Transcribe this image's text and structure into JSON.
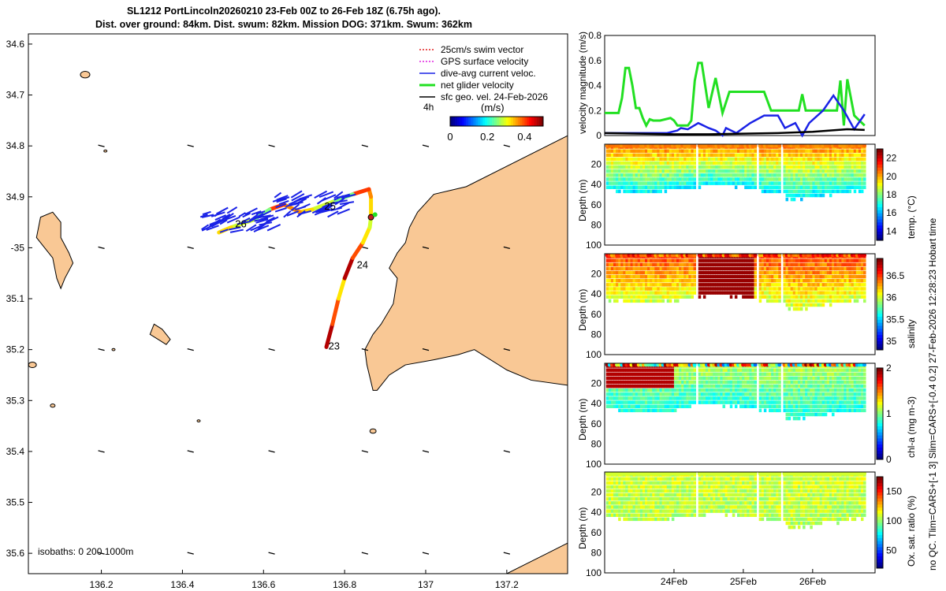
{
  "title": {
    "line1": "SL1212 PortLincoln20260210 23-Feb 00Z to 26-Feb 18Z (6.75h ago).",
    "line2": "Dist. over ground: 84km. Dist. swum: 82km. Mission DOG: 371km. Swum: 362km"
  },
  "side_note": "no QC. Tlim=CARS+[-1 3] Slim=CARS+[-0.4 0.2] 27-Feb-2026 12:28:23 Hobart time",
  "colors": {
    "land": "#f9c895",
    "swim": "#e32020",
    "gps": "#e020e0",
    "current": "#1a22e6",
    "net": "#22e022",
    "geo": "#000000"
  },
  "chart_data": [
    {
      "type": "map",
      "name": "glider track map",
      "xlim": [
        136.02,
        137.35
      ],
      "ylim": [
        -35.64,
        -34.58
      ],
      "x_ticks": [
        136.2,
        136.4,
        136.6,
        136.8,
        137,
        137.2
      ],
      "x_tick_labels": [
        "136.2",
        "136.4",
        "136.6",
        "136.8",
        "137",
        "137.2"
      ],
      "y_ticks": [
        -34.6,
        -34.7,
        -34.8,
        -34.9,
        -35,
        -35.1,
        -35.2,
        -35.3,
        -35.4,
        -35.5,
        -35.6
      ],
      "y_tick_labels": [
        "34.6",
        "34.7",
        "34.8",
        "34.9",
        "-35",
        "35.1",
        "35.2",
        "35.3",
        "35.4",
        "35.5",
        "35.6"
      ],
      "legend": [
        {
          "label": "25cm/s swim vector",
          "color": "#e32020",
          "style": "dotted"
        },
        {
          "label": "GPS surface velocity",
          "color": "#e020e0",
          "style": "dotted"
        },
        {
          "label": "dive-avg current veloc.",
          "color": "#1a22e6",
          "style": "solid"
        },
        {
          "label": "net glider velocity",
          "color": "#22e022",
          "style": "thick"
        },
        {
          "label": "sfc geo. vel. 24-Feb-2026",
          "color": "#000000",
          "style": "solid"
        }
      ],
      "legend_position": "top-right",
      "interval_label": "4h",
      "colorbar": {
        "label": "(m/s)",
        "ticks": [
          0,
          0.2,
          0.4
        ],
        "tick_labels": [
          "0",
          "0.2",
          "0.4"
        ],
        "range": [
          0,
          0.5
        ],
        "colormap": "jet"
      },
      "day_labels": [
        {
          "text": "23",
          "lon": 136.76,
          "lat": -35.2
        },
        {
          "text": "24",
          "lon": 136.83,
          "lat": -35.04
        },
        {
          "text": "25",
          "lon": 136.75,
          "lat": -34.925
        },
        {
          "text": "26",
          "lon": 136.53,
          "lat": -34.96
        }
      ],
      "track": [
        [
          136.755,
          -35.195
        ],
        [
          136.77,
          -35.15
        ],
        [
          136.785,
          -35.1
        ],
        [
          136.8,
          -35.06
        ],
        [
          136.82,
          -35.02
        ],
        [
          136.845,
          -34.99
        ],
        [
          136.862,
          -34.96
        ],
        [
          136.865,
          -34.94
        ],
        [
          136.865,
          -34.9
        ],
        [
          136.86,
          -34.885
        ],
        [
          136.82,
          -34.895
        ],
        [
          136.77,
          -34.91
        ],
        [
          136.72,
          -34.925
        ],
        [
          136.69,
          -34.93
        ],
        [
          136.65,
          -34.915
        ],
        [
          136.615,
          -34.925
        ],
        [
          136.575,
          -34.945
        ],
        [
          136.52,
          -34.96
        ],
        [
          136.49,
          -34.97
        ]
      ],
      "end_marker": {
        "lon": 136.865,
        "lat": -34.94
      },
      "green_dot": {
        "lon": 136.875,
        "lat": -34.935
      },
      "isobath_label": "isobaths: 0   200  1000m"
    },
    {
      "type": "line",
      "name": "velocity magnitude",
      "ylabel": "velocity magnitude (m/s)",
      "ylim": [
        0,
        0.8
      ],
      "y_ticks": [
        0,
        0.2,
        0.4,
        0.6,
        0.8
      ],
      "y_tick_labels": [
        "0",
        "0.2",
        "0.4",
        "0.6",
        "0.8"
      ],
      "xlim": [
        23.0,
        26.9
      ],
      "series": [
        {
          "name": "net glider velocity",
          "color": "#22e022",
          "x": [
            23.0,
            23.2,
            23.25,
            23.3,
            23.35,
            23.4,
            23.45,
            23.5,
            23.55,
            23.6,
            23.65,
            23.7,
            23.8,
            23.95,
            24.0,
            24.05,
            24.1,
            24.2,
            24.25,
            24.3,
            24.35,
            24.4,
            24.5,
            24.6,
            24.7,
            24.8,
            25.1,
            25.2,
            25.3,
            25.4,
            25.6,
            25.8,
            25.85,
            25.9,
            26.3,
            26.35,
            26.4,
            26.45,
            26.5,
            26.6,
            26.75
          ],
          "values": [
            0.18,
            0.18,
            0.3,
            0.54,
            0.54,
            0.4,
            0.22,
            0.22,
            0.14,
            0.08,
            0.13,
            0.12,
            0.12,
            0.14,
            0.12,
            0.08,
            0.08,
            0.08,
            0.12,
            0.44,
            0.58,
            0.58,
            0.22,
            0.46,
            0.18,
            0.35,
            0.35,
            0.35,
            0.35,
            0.2,
            0.2,
            0.2,
            0.33,
            0.2,
            0.2,
            0.2,
            0.44,
            0.08,
            0.45,
            0.16,
            0.08
          ]
        },
        {
          "name": "dive-avg current",
          "color": "#1a22e6",
          "x": [
            23.0,
            23.3,
            23.6,
            23.9,
            24.05,
            24.1,
            24.2,
            24.35,
            24.5,
            24.6,
            24.7,
            24.75,
            24.9,
            25.1,
            25.3,
            25.5,
            25.6,
            25.75,
            25.85,
            25.95,
            26.15,
            26.3,
            26.45,
            26.6,
            26.75
          ],
          "values": [
            0.02,
            0.02,
            0.02,
            0.02,
            0.04,
            0.06,
            0.05,
            0.1,
            0.06,
            0.04,
            0.0,
            0.06,
            0.02,
            0.1,
            0.16,
            0.16,
            0.06,
            0.1,
            0.0,
            0.1,
            0.2,
            0.32,
            0.2,
            0.05,
            0.17
          ]
        },
        {
          "name": "sfc geo vel",
          "color": "#000000",
          "x": [
            23.0,
            23.5,
            24.0,
            24.5,
            25.0,
            25.5,
            26.0,
            26.5,
            26.75
          ],
          "values": [
            0.02,
            0.015,
            0.01,
            0.01,
            0.015,
            0.02,
            0.03,
            0.05,
            0.045
          ]
        }
      ]
    },
    {
      "type": "heatmap",
      "name": "temperature section",
      "ylabel": "Depth (m)",
      "y_ticks": [
        20,
        40,
        60,
        80,
        100
      ],
      "y_tick_labels": [
        "20",
        "40",
        "60",
        "80",
        "100"
      ],
      "colorbar_label": "temp. (°C)",
      "colorbar_ticks": [
        14,
        16,
        18,
        20,
        22
      ],
      "colorbar_tick_labels": [
        "14",
        "16",
        "18",
        "20",
        "22"
      ],
      "color_range": [
        13,
        23
      ],
      "surface_value": 20.5,
      "deep_value": 16.5
    },
    {
      "type": "heatmap",
      "name": "salinity section",
      "ylabel": "Depth (m)",
      "y_ticks": [
        20,
        40,
        60,
        80,
        100
      ],
      "y_tick_labels": [
        "20",
        "40",
        "60",
        "80",
        "100"
      ],
      "colorbar_label": "salinity",
      "colorbar_ticks": [
        35,
        35.5,
        36,
        36.5
      ],
      "colorbar_tick_labels": [
        "35",
        "35.5",
        "36",
        "36.5"
      ],
      "color_range": [
        34.8,
        36.9
      ],
      "surface_value": 36.5,
      "deep_value": 36.0
    },
    {
      "type": "heatmap",
      "name": "chlorophyll section",
      "ylabel": "Depth (m)",
      "y_ticks": [
        20,
        40,
        60,
        80,
        100
      ],
      "y_tick_labels": [
        "20",
        "40",
        "60",
        "80",
        "100"
      ],
      "colorbar_label": "chl-a (mg m-3)",
      "colorbar_ticks": [
        0,
        1,
        2
      ],
      "colorbar_tick_labels": [
        "0",
        "1",
        "2"
      ],
      "color_range": [
        0,
        2
      ],
      "surface_value": 1.1,
      "deep_value": 0.8
    },
    {
      "type": "heatmap",
      "name": "oxygen saturation section",
      "ylabel": "Depth (m)",
      "y_ticks": [
        20,
        40,
        60,
        80,
        100
      ],
      "y_tick_labels": [
        "20",
        "40",
        "60",
        "80",
        "100"
      ],
      "colorbar_label": "Ox. sat. ratio (%)",
      "colorbar_ticks": [
        50,
        100,
        150
      ],
      "colorbar_tick_labels": [
        "50",
        "100",
        "150"
      ],
      "color_range": [
        20,
        175
      ],
      "surface_value": 110,
      "deep_value": 105
    },
    {
      "type": "time_axis",
      "name": "shared time axis",
      "xlim": [
        23.0,
        26.9
      ],
      "ticks": [
        24,
        25,
        26
      ],
      "tick_labels": [
        "24Feb",
        "25Feb",
        "26Feb"
      ]
    }
  ]
}
